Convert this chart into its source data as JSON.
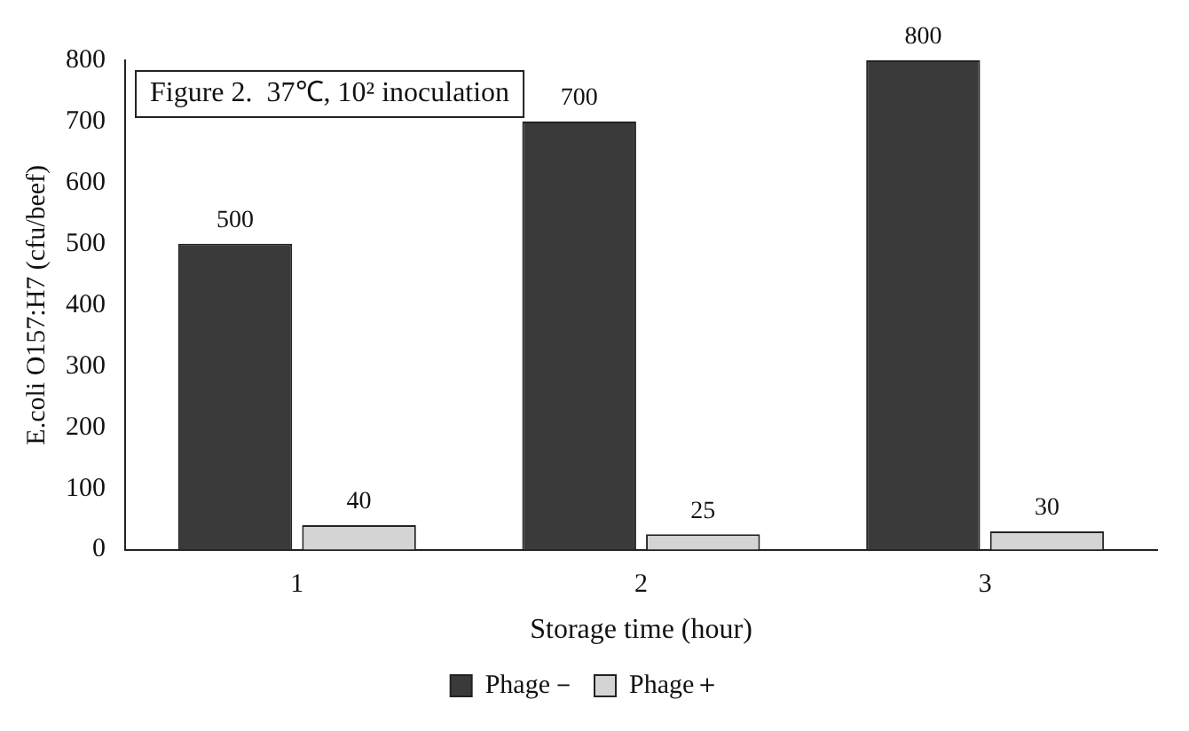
{
  "chart_data": {
    "type": "bar",
    "title": "Figure 2.  37℃, 10² inoculation",
    "xlabel": "Storage time (hour)",
    "ylabel": "E.coli O157:H7 (cfu/beef)",
    "categories": [
      "1",
      "2",
      "3"
    ],
    "series": [
      {
        "name": "Phage－",
        "color": "#3a3a3a",
        "values": [
          500,
          700,
          800
        ]
      },
      {
        "name": "Phage＋",
        "color": "#d4d4d4",
        "values": [
          40,
          25,
          30
        ]
      }
    ],
    "ylim": [
      0,
      800
    ],
    "yticks": [
      0,
      100,
      200,
      300,
      400,
      500,
      600,
      700,
      800
    ],
    "grid": false,
    "legend": "bottom",
    "data_labels": true
  }
}
